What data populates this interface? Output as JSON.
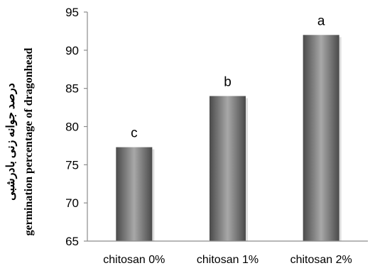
{
  "chart_data": {
    "type": "bar",
    "categories": [
      "chitosan 0%",
      "chitosan 1%",
      "chitosan 2%"
    ],
    "values": [
      77.3,
      84.0,
      92.0
    ],
    "data_labels": [
      "c",
      "b",
      "a"
    ],
    "ylabel_lines": [
      "درصد جوانه زنی بادرشبی",
      "germination percentage of dragonhead"
    ],
    "xlabel": "",
    "ylim": [
      65,
      95
    ],
    "yticks": [
      65,
      70,
      75,
      80,
      85,
      90,
      95
    ],
    "grid": false,
    "legend": "none",
    "bar_color": "#7a7a7a"
  }
}
